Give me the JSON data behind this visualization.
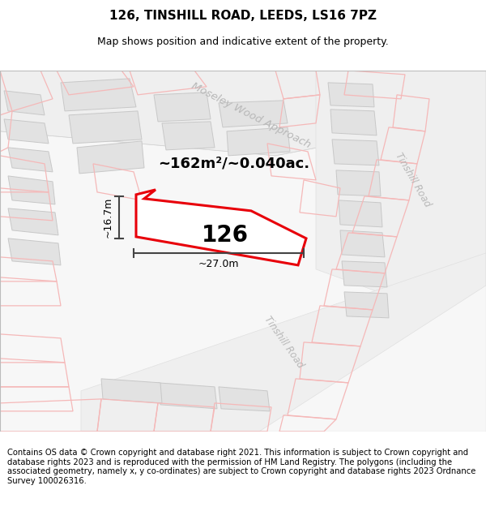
{
  "title": "126, TINSHILL ROAD, LEEDS, LS16 7PZ",
  "subtitle": "Map shows position and indicative extent of the property.",
  "footer": "Contains OS data © Crown copyright and database right 2021. This information is subject to Crown copyright and database rights 2023 and is reproduced with the permission of HM Land Registry. The polygons (including the associated geometry, namely x, y co-ordinates) are subject to Crown copyright and database rights 2023 Ordnance Survey 100026316.",
  "area_text": "~162m²/~0.040ac.",
  "width_label": "~27.0m",
  "height_label": "~16.7m",
  "plot_number": "126",
  "map_bg": "#f7f7f7",
  "building_color": "#e2e2e2",
  "building_edge": "#c8c8c8",
  "road_color": "#efefef",
  "pink_color": "#f5b8b8",
  "red_outline": "#e8000a",
  "dim_line_color": "#444444",
  "road_label_color": "#b8b8b8",
  "title_fontsize": 11,
  "subtitle_fontsize": 9,
  "footer_fontsize": 7.2,
  "area_fontsize": 13,
  "plot_num_fontsize": 20,
  "dim_fontsize": 9
}
